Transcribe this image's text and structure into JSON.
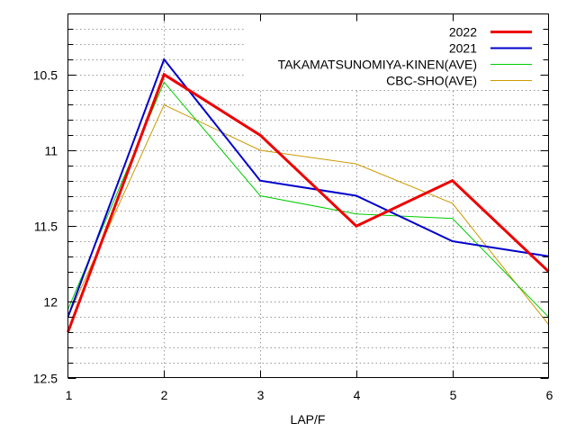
{
  "chart_data": {
    "type": "line",
    "title": "",
    "xlabel": "LAP/F",
    "ylabel": "",
    "x": [
      1,
      2,
      3,
      4,
      5,
      6
    ],
    "xlim": [
      1,
      6
    ],
    "ylim": [
      12.5,
      10.1
    ],
    "y_inverted": true,
    "xticks": [
      "1",
      "2",
      "3",
      "4",
      "5",
      "6"
    ],
    "yticks": [
      {
        "value": 10.5,
        "label": "10.5"
      },
      {
        "value": 11,
        "label": "11"
      },
      {
        "value": 11.5,
        "label": "11.5"
      },
      {
        "value": 12,
        "label": "12"
      },
      {
        "value": 12.5,
        "label": "12.5"
      }
    ],
    "minor_y_step": 0.1,
    "grid": true,
    "legend_position": "top-right",
    "series": [
      {
        "name": "2022",
        "color": "#ee0000",
        "style": "thick",
        "values": [
          12.2,
          10.5,
          10.9,
          11.5,
          11.2,
          11.8
        ]
      },
      {
        "name": "2021",
        "color": "#0000cc",
        "style": "medium",
        "values": [
          12.1,
          10.4,
          11.2,
          11.3,
          11.6,
          11.7
        ]
      },
      {
        "name": "TAKAMATSUNOMIYA-KINEN(AVE)",
        "color": "#00cc00",
        "style": "thin",
        "values": [
          12.05,
          10.55,
          11.3,
          11.42,
          11.45,
          12.1
        ]
      },
      {
        "name": "CBC-SHO(AVE)",
        "color": "#cc9900",
        "style": "thin",
        "values": [
          12.1,
          10.7,
          11.0,
          11.09,
          11.35,
          12.15
        ]
      }
    ]
  }
}
